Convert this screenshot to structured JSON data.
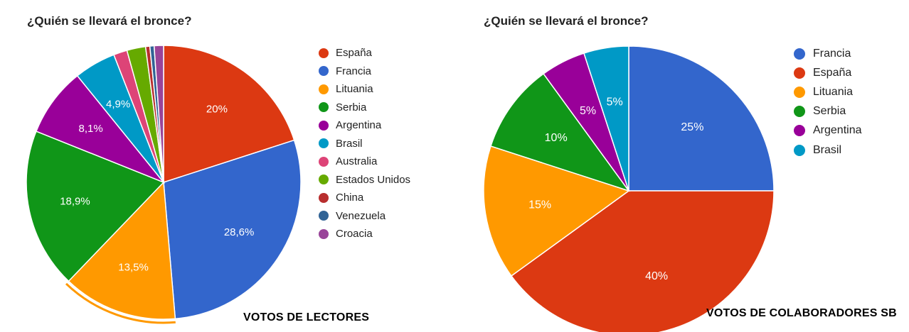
{
  "chart_data": [
    {
      "type": "pie",
      "title": "¿Quién se llevará el bronce?",
      "caption": "VOTOS DE LECTORES",
      "legend_position": "right",
      "slices": [
        {
          "label": "España",
          "value": 20,
          "value_label": "20%",
          "color": "#dc3912"
        },
        {
          "label": "Francia",
          "value": 28.6,
          "value_label": "28,6%",
          "color": "#3366cc"
        },
        {
          "label": "Lituania",
          "value": 13.5,
          "value_label": "13,5%",
          "color": "#ff9900"
        },
        {
          "label": "Serbia",
          "value": 18.9,
          "value_label": "18,9%",
          "color": "#109618"
        },
        {
          "label": "Argentina",
          "value": 8.1,
          "value_label": "8,1%",
          "color": "#990099"
        },
        {
          "label": "Brasil",
          "value": 4.9,
          "value_label": "4,9%",
          "color": "#0099c6"
        },
        {
          "label": "Australia",
          "value": 1.6,
          "value_label": "",
          "color": "#dd4477"
        },
        {
          "label": "Estados Unidos",
          "value": 2.2,
          "value_label": "",
          "color": "#66aa00"
        },
        {
          "label": "China",
          "value": 0.5,
          "value_label": "",
          "color": "#b82e2e"
        },
        {
          "label": "Venezuela",
          "value": 0.5,
          "value_label": "",
          "color": "#316395"
        },
        {
          "label": "Croacia",
          "value": 1.1,
          "value_label": "",
          "color": "#994499"
        }
      ]
    },
    {
      "type": "pie",
      "title": "¿Quién se llevará el bronce?",
      "caption": "VOTOS DE COLABORADORES SB",
      "legend_position": "right",
      "slices": [
        {
          "label": "Francia",
          "value": 25,
          "value_label": "25%",
          "color": "#3366cc"
        },
        {
          "label": "España",
          "value": 40,
          "value_label": "40%",
          "color": "#dc3912"
        },
        {
          "label": "Lituania",
          "value": 15,
          "value_label": "15%",
          "color": "#ff9900"
        },
        {
          "label": "Serbia",
          "value": 10,
          "value_label": "10%",
          "color": "#109618"
        },
        {
          "label": "Argentina",
          "value": 5,
          "value_label": "5%",
          "color": "#990099"
        },
        {
          "label": "Brasil",
          "value": 5,
          "value_label": "5%",
          "color": "#0099c6"
        }
      ]
    }
  ]
}
